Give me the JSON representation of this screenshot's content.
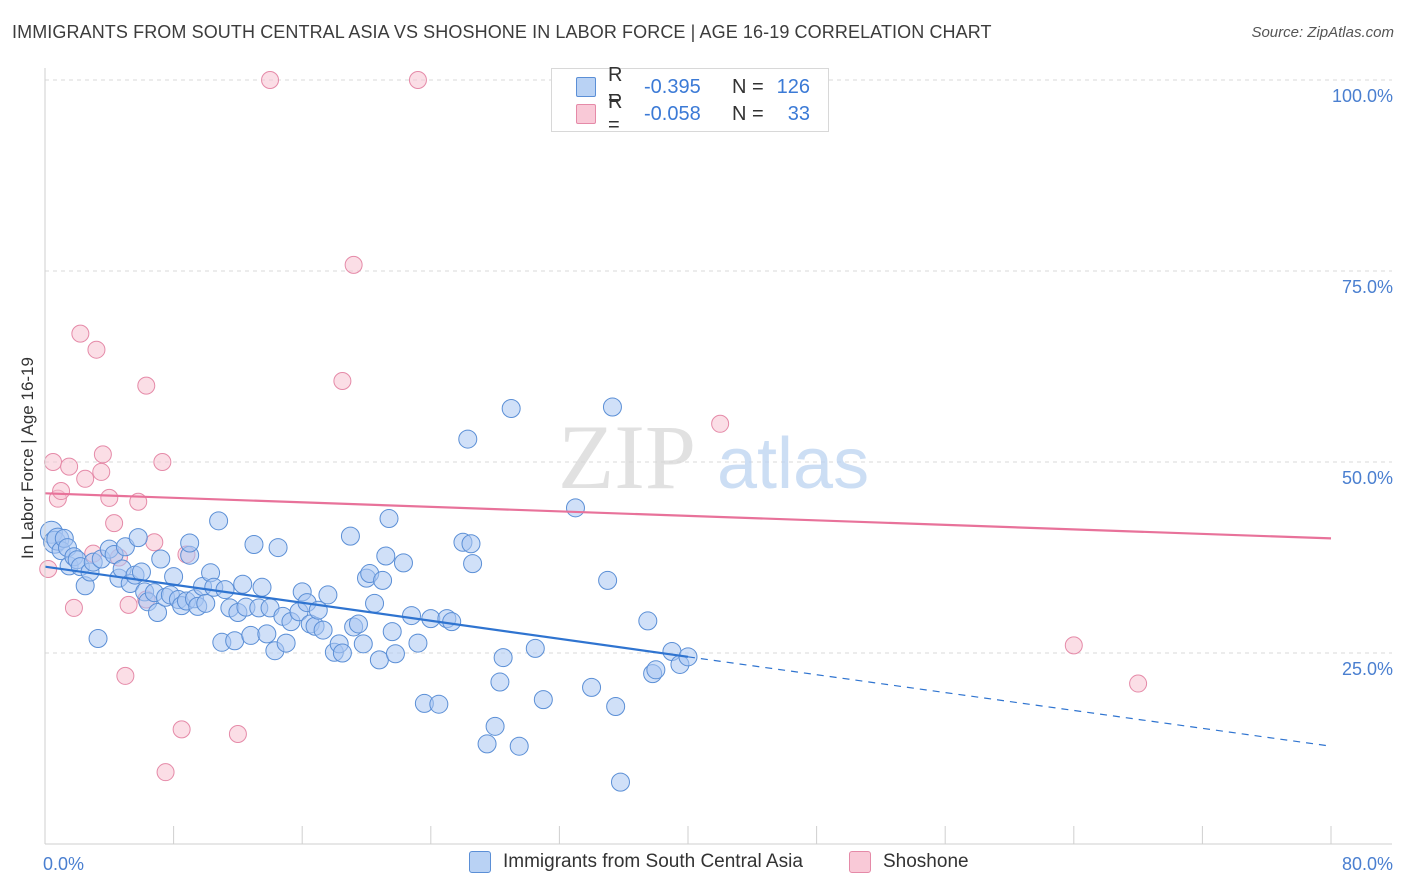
{
  "title": "IMMIGRANTS FROM SOUTH CENTRAL ASIA VS SHOSHONE IN LABOR FORCE | AGE 16-19 CORRELATION CHART",
  "source": "Source: ZipAtlas.com",
  "watermark": {
    "zip": "ZIP",
    "atlas": "atlas"
  },
  "legend": {
    "rows": [
      {
        "r_label": "R =",
        "r_value": "-0.395",
        "n_label": "N =",
        "n_value": "126",
        "color": "#9dc0f0",
        "border": "#5b8fd6"
      },
      {
        "r_label": "R =",
        "r_value": "-0.058",
        "n_label": "N =",
        "n_value": "33",
        "color": "#f7b8cb",
        "border": "#e87fa0"
      }
    ]
  },
  "bottom_legend": {
    "series1": "Immigrants from South Central Asia",
    "series2": "Shoshone"
  },
  "colors": {
    "blue_fill": "#a9c7f2",
    "blue_stroke": "#5b8fd6",
    "blue_line": "#2f74d0",
    "pink_fill": "#f8c3d2",
    "pink_stroke": "#e58aa8",
    "pink_line": "#e8729a",
    "grid": "#d9d9d9",
    "tick_text": "#4a7fd0"
  },
  "chart_data": {
    "type": "scatter",
    "ylabel": "In Labor Force | Age 16-19",
    "xlabel": "",
    "xlim": [
      0,
      80
    ],
    "ylim": [
      0,
      100
    ],
    "x_tick_labels": [
      {
        "value": 0,
        "label": "0.0%"
      },
      {
        "value": 80,
        "label": "80.0%"
      }
    ],
    "y_tick_labels": [
      {
        "value": 25,
        "label": "25.0%"
      },
      {
        "value": 50,
        "label": "50.0%"
      },
      {
        "value": 75,
        "label": "75.0%"
      },
      {
        "value": 100,
        "label": "100.0%"
      }
    ],
    "x_minor_ticks": [
      0,
      8,
      16,
      24,
      32,
      40,
      48,
      56,
      64,
      72,
      80
    ],
    "grid": true,
    "series": [
      {
        "name": "Immigrants from South Central Asia",
        "trend": {
          "x0": 0,
          "y0": 36.3,
          "x1": 40.0,
          "y1": 24.5,
          "dash_to_x": 80,
          "dash_to_y": 12.8
        },
        "points": [
          [
            0.4,
            40.8
          ],
          [
            0.6,
            39.5
          ],
          [
            0.8,
            39.9
          ],
          [
            1.0,
            38.4
          ],
          [
            1.2,
            40.0
          ],
          [
            1.4,
            38.8
          ],
          [
            1.5,
            36.4
          ],
          [
            1.8,
            37.6
          ],
          [
            2.0,
            37.2
          ],
          [
            2.2,
            36.3
          ],
          [
            2.5,
            33.8
          ],
          [
            2.8,
            35.6
          ],
          [
            3.0,
            36.9
          ],
          [
            3.3,
            26.9
          ],
          [
            3.5,
            37.3
          ],
          [
            4.0,
            38.6
          ],
          [
            4.3,
            37.9
          ],
          [
            4.6,
            34.8
          ],
          [
            4.8,
            36.0
          ],
          [
            5.0,
            38.9
          ],
          [
            5.3,
            34.1
          ],
          [
            5.6,
            35.2
          ],
          [
            5.8,
            40.1
          ],
          [
            6.0,
            35.6
          ],
          [
            6.2,
            33.0
          ],
          [
            6.4,
            31.7
          ],
          [
            6.8,
            32.9
          ],
          [
            7.0,
            30.3
          ],
          [
            7.2,
            37.3
          ],
          [
            7.5,
            32.3
          ],
          [
            7.8,
            32.6
          ],
          [
            8.0,
            35.0
          ],
          [
            8.3,
            32.0
          ],
          [
            8.5,
            31.2
          ],
          [
            8.8,
            31.8
          ],
          [
            9.0,
            37.8
          ],
          [
            9.0,
            39.4
          ],
          [
            9.3,
            32.1
          ],
          [
            9.5,
            31.1
          ],
          [
            9.8,
            33.7
          ],
          [
            10.0,
            31.5
          ],
          [
            10.3,
            35.5
          ],
          [
            10.5,
            33.6
          ],
          [
            10.8,
            42.3
          ],
          [
            11.0,
            26.4
          ],
          [
            11.2,
            33.3
          ],
          [
            11.5,
            30.9
          ],
          [
            11.8,
            26.6
          ],
          [
            12.0,
            30.3
          ],
          [
            12.3,
            34.0
          ],
          [
            12.5,
            31.0
          ],
          [
            12.8,
            27.3
          ],
          [
            13.0,
            39.2
          ],
          [
            13.3,
            30.9
          ],
          [
            13.5,
            33.6
          ],
          [
            13.8,
            27.5
          ],
          [
            14.0,
            30.9
          ],
          [
            14.3,
            25.3
          ],
          [
            14.5,
            38.8
          ],
          [
            14.8,
            29.8
          ],
          [
            15.0,
            26.3
          ],
          [
            15.3,
            29.1
          ],
          [
            15.8,
            30.4
          ],
          [
            16.0,
            33.0
          ],
          [
            16.3,
            31.6
          ],
          [
            16.5,
            28.8
          ],
          [
            16.8,
            28.5
          ],
          [
            17.0,
            30.6
          ],
          [
            17.3,
            28.0
          ],
          [
            17.6,
            32.6
          ],
          [
            18.0,
            25.1
          ],
          [
            18.3,
            26.2
          ],
          [
            18.5,
            25.0
          ],
          [
            19.0,
            40.3
          ],
          [
            19.2,
            28.4
          ],
          [
            19.5,
            28.8
          ],
          [
            19.8,
            26.2
          ],
          [
            20.0,
            34.8
          ],
          [
            20.2,
            35.4
          ],
          [
            20.5,
            31.5
          ],
          [
            20.8,
            24.1
          ],
          [
            21.0,
            34.5
          ],
          [
            21.2,
            37.7
          ],
          [
            21.4,
            42.6
          ],
          [
            21.6,
            27.8
          ],
          [
            21.8,
            24.9
          ],
          [
            22.3,
            36.8
          ],
          [
            22.8,
            29.9
          ],
          [
            23.2,
            26.3
          ],
          [
            23.6,
            18.4
          ],
          [
            24.0,
            29.5
          ],
          [
            24.5,
            18.3
          ],
          [
            25.0,
            29.5
          ],
          [
            25.3,
            29.1
          ],
          [
            26.0,
            39.5
          ],
          [
            26.5,
            39.3
          ],
          [
            26.3,
            53.0
          ],
          [
            26.6,
            36.7
          ],
          [
            27.5,
            13.1
          ],
          [
            28.0,
            15.4
          ],
          [
            28.3,
            21.2
          ],
          [
            28.5,
            24.4
          ],
          [
            29.0,
            57.0
          ],
          [
            29.5,
            12.8
          ],
          [
            30.5,
            25.6
          ],
          [
            31.0,
            18.9
          ],
          [
            33.0,
            44.0
          ],
          [
            34.0,
            20.5
          ],
          [
            35.0,
            34.5
          ],
          [
            35.3,
            57.2
          ],
          [
            35.5,
            18.0
          ],
          [
            35.8,
            8.1
          ],
          [
            37.5,
            29.2
          ],
          [
            37.8,
            22.3
          ],
          [
            38.0,
            22.8
          ],
          [
            39.0,
            25.2
          ],
          [
            39.5,
            23.5
          ],
          [
            40.0,
            24.5
          ]
        ]
      },
      {
        "name": "Shoshone",
        "trend": {
          "x0": 0,
          "y0": 45.9,
          "x1": 80,
          "y1": 40.0
        },
        "points": [
          [
            0.2,
            36.0
          ],
          [
            0.5,
            50.0
          ],
          [
            0.8,
            45.2
          ],
          [
            1.0,
            46.2
          ],
          [
            1.5,
            49.4
          ],
          [
            1.8,
            30.9
          ],
          [
            2.2,
            66.8
          ],
          [
            2.5,
            47.8
          ],
          [
            3.2,
            64.7
          ],
          [
            3.5,
            48.7
          ],
          [
            3.6,
            51.0
          ],
          [
            4.0,
            45.3
          ],
          [
            4.3,
            42.0
          ],
          [
            4.6,
            37.5
          ],
          [
            5.0,
            22.0
          ],
          [
            5.2,
            31.3
          ],
          [
            5.8,
            44.8
          ],
          [
            6.3,
            32.0
          ],
          [
            6.3,
            60.0
          ],
          [
            6.8,
            39.5
          ],
          [
            7.5,
            9.4
          ],
          [
            7.3,
            50.0
          ],
          [
            8.5,
            15.0
          ],
          [
            8.8,
            37.9
          ],
          [
            12.0,
            14.4
          ],
          [
            14.0,
            100.0
          ],
          [
            18.5,
            60.6
          ],
          [
            19.2,
            75.8
          ],
          [
            23.2,
            100.0
          ],
          [
            42.0,
            55.0
          ],
          [
            64.0,
            26.0
          ],
          [
            68.0,
            21.0
          ],
          [
            3.0,
            38.0
          ]
        ]
      }
    ]
  }
}
